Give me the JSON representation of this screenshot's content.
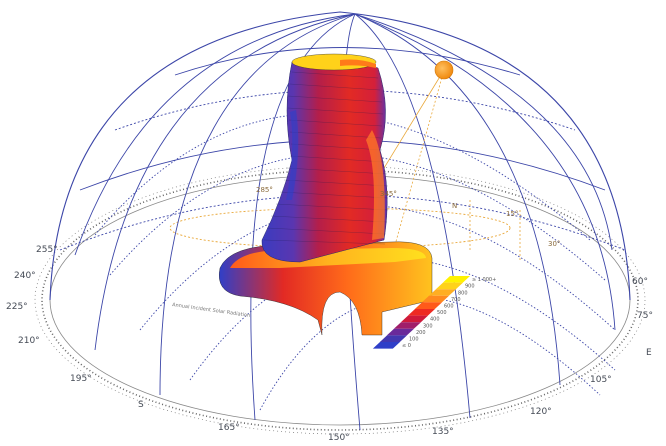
{
  "diagram": {
    "compass_labels": [
      {
        "text": "255°"
      },
      {
        "text": "240°"
      },
      {
        "text": "225°"
      },
      {
        "text": "210°"
      },
      {
        "text": "195°"
      },
      {
        "text": "S"
      },
      {
        "text": "165°"
      },
      {
        "text": "150°"
      },
      {
        "text": "135°"
      },
      {
        "text": "120°"
      },
      {
        "text": "105°"
      },
      {
        "text": "E"
      },
      {
        "text": "75°"
      },
      {
        "text": "60°"
      }
    ],
    "inner_labels": [
      {
        "text": "285°"
      },
      {
        "text": "345°"
      },
      {
        "text": "N"
      },
      {
        "text": "15°"
      },
      {
        "text": "30°"
      }
    ],
    "annotation": "Annual Incident Solar Radiation",
    "legend": {
      "entries": [
        "≥ 1 000+",
        "900",
        "800",
        "700",
        "600",
        "500",
        "400",
        "300",
        "200",
        "100",
        "≤ 0"
      ],
      "colors": [
        "#fff200",
        "#ffd21a",
        "#ffae22",
        "#ff8a1e",
        "#ff5a1a",
        "#ee2a22",
        "#cf1a3a",
        "#a01e6a",
        "#6a2a9a",
        "#4338b0",
        "#2f3fc8"
      ]
    },
    "colors": {
      "dome_blue": "#3c46a8",
      "orbit_orange": "#e9a83a",
      "sun_orange": "#f2941e"
    }
  }
}
